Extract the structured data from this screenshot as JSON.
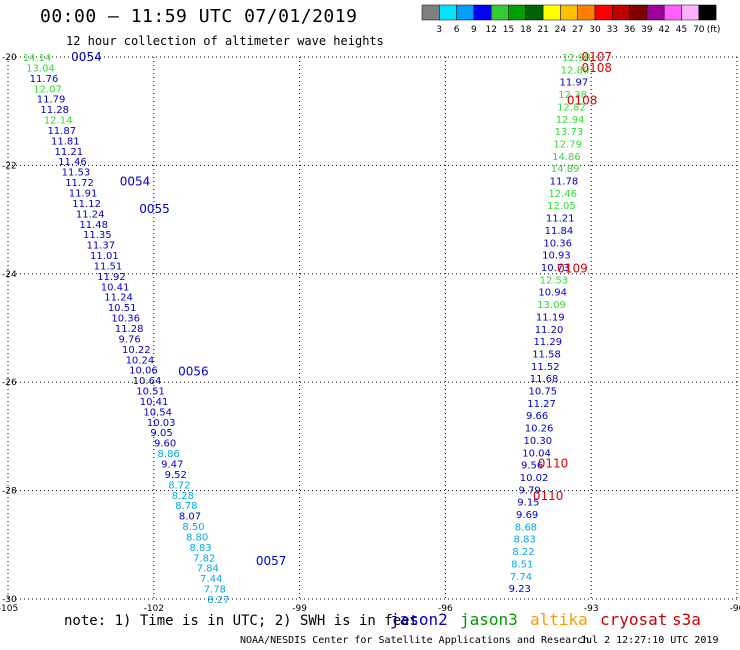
{
  "title": "00:00 – 11:59 UTC 07/01/2019",
  "subtitle": "12 hour collection of altimeter wave heights",
  "note": "note: 1) Time is in UTC; 2) SWH is in feet",
  "credit": "NOAA/NESDIS Center for Satellite Applications and Research",
  "timestamp": "Jul  2 12:27:10 UTC 2019",
  "colorbar": {
    "unit": "(ft)",
    "ticks": [
      "3",
      "6",
      "9",
      "12",
      "15",
      "18",
      "21",
      "24",
      "27",
      "30",
      "33",
      "36",
      "39",
      "42",
      "45",
      "70"
    ],
    "colors": [
      "#7f7f7f",
      "#00e5ff",
      "#00a0ff",
      "#0000ff",
      "#33cc33",
      "#00a000",
      "#006400",
      "#ffff00",
      "#ffc000",
      "#ff8000",
      "#ff0000",
      "#c00000",
      "#800000",
      "#a000a0",
      "#ff60ff",
      "#ffb0ff",
      "#000000"
    ]
  },
  "satellites": [
    {
      "name": "jason2",
      "color": "#0000cc"
    },
    {
      "name": "jason3",
      "color": "#009900"
    },
    {
      "name": "altika",
      "color": "#ff9900"
    },
    {
      "name": "cryosat",
      "color": "#cc0000"
    },
    {
      "name": "s3a",
      "color": "#cc0000"
    }
  ],
  "chart_data": {
    "type": "scatter",
    "xlim": [
      -105,
      -90
    ],
    "ylim": [
      -30,
      -20
    ],
    "xticks": [
      "-105",
      "-102",
      "-99",
      "-96",
      "-93",
      "-90"
    ],
    "yticks": [
      "-20",
      "-22",
      "-24",
      "-26",
      "-28",
      "-30"
    ],
    "grid": true,
    "left_track": {
      "values": [
        "14.14",
        "13.04",
        "11.76",
        "12.07",
        "11.79",
        "11.28",
        "12.14",
        "11.87",
        "11.81",
        "11.21",
        "11.46",
        "11.53",
        "11.72",
        "11.91",
        "11.12",
        "11.24",
        "11.48",
        "11.35",
        "11.37",
        "11.01",
        "11.51",
        "11.92",
        "10.41",
        "11.24",
        "10.51",
        "10.36",
        "11.28",
        "9.76",
        "10.22",
        "10.24",
        "10.06",
        "10.64",
        "10.51",
        "10.41",
        "10.54",
        "10.03",
        "9.05",
        "9.60",
        "8.86",
        "9.47",
        "9.52",
        "8.72",
        "8.28",
        "8.78",
        "8.07",
        "8.50",
        "8.80",
        "8.83",
        "7.82",
        "7.84",
        "7.44",
        "7.78",
        "8.27"
      ],
      "colors": [
        "g",
        "g",
        "b",
        "g",
        "b",
        "b",
        "g",
        "b",
        "b",
        "b",
        "b",
        "b",
        "b",
        "b",
        "b",
        "b",
        "b",
        "b",
        "b",
        "b",
        "b",
        "b",
        "b",
        "b",
        "b",
        "b",
        "b",
        "b",
        "b",
        "b",
        "b",
        "b",
        "b",
        "b",
        "b",
        "b",
        "b",
        "b",
        "c",
        "b",
        "b",
        "c",
        "c",
        "c",
        "b",
        "c",
        "c",
        "c",
        "c",
        "c",
        "c",
        "c",
        "c"
      ],
      "lat_start": -20.0,
      "lat_end": -30.0,
      "lon_start": -104.7,
      "lon_end": -100.9
    },
    "right_track": {
      "values": [
        "12.98",
        "12.80",
        "11.97",
        "12.38",
        "12.82",
        "12.94",
        "13.73",
        "12.79",
        "14.86",
        "14.89",
        "11.78",
        "12.46",
        "12.05",
        "11.21",
        "11.84",
        "10.36",
        "10.93",
        "10.73",
        "12.53",
        "10.94",
        "13.09",
        "11.19",
        "11.20",
        "11.29",
        "11.58",
        "11.52",
        "11.68",
        "10.75",
        "11.27",
        "9.66",
        "10.26",
        "10.30",
        "10.04",
        "9.56",
        "10.02",
        "9.79",
        "9.15",
        "9.69",
        "8.68",
        "8.83",
        "8.22",
        "8.51",
        "7.74",
        "9.23"
      ],
      "colors": [
        "g",
        "g",
        "b",
        "g",
        "g",
        "g",
        "g",
        "g",
        "g",
        "g",
        "b",
        "g",
        "g",
        "b",
        "b",
        "b",
        "b",
        "b",
        "g",
        "b",
        "g",
        "b",
        "b",
        "b",
        "b",
        "b",
        "b",
        "b",
        "b",
        "b",
        "b",
        "b",
        "b",
        "b",
        "b",
        "b",
        "b",
        "b",
        "c",
        "c",
        "c",
        "c",
        "c",
        "b"
      ],
      "lat_start": -20.0,
      "lat_end": -29.8,
      "lon_start": -93.6,
      "lon_end": -94.7
    },
    "pass_labels": [
      {
        "text": "0054",
        "lon": -103.7,
        "lat": -20.0,
        "color": "b"
      },
      {
        "text": "0054",
        "lon": -102.7,
        "lat": -22.3,
        "color": "b"
      },
      {
        "text": "0055",
        "lon": -102.3,
        "lat": -22.8,
        "color": "b"
      },
      {
        "text": "0056",
        "lon": -101.5,
        "lat": -25.8,
        "color": "b"
      },
      {
        "text": "0057",
        "lon": -99.9,
        "lat": -29.3,
        "color": "b"
      },
      {
        "text": "0107",
        "lon": -93.2,
        "lat": -20.0,
        "color": "r"
      },
      {
        "text": "0108",
        "lon": -93.2,
        "lat": -20.2,
        "color": "r"
      },
      {
        "text": "0108",
        "lon": -93.5,
        "lat": -20.8,
        "color": "r"
      },
      {
        "text": "0109",
        "lon": -93.7,
        "lat": -23.9,
        "color": "r"
      },
      {
        "text": "0110",
        "lon": -94.1,
        "lat": -27.5,
        "color": "r"
      },
      {
        "text": "0110",
        "lon": -94.2,
        "lat": -28.1,
        "color": "r"
      }
    ]
  }
}
